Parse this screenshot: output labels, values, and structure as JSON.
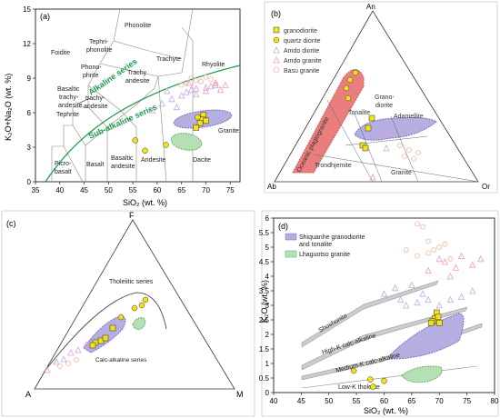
{
  "legend_colors": {
    "granodiorite": "#f5e11a",
    "quartz_diorite": "#f5e11a",
    "amdo_diorite": "#c9a6e6",
    "amdo_granite": "#e69ad0",
    "basu_granite": "#f3b79e",
    "purple_field": "#b5aee0",
    "green_field": "#b5dfb5",
    "red_field": "#e86f6f",
    "alkaline_line": "#1a9a4a"
  },
  "chart_data": [
    {
      "panel": "(a)",
      "type": "scatter",
      "xlabel": "SiO₂ (wt. %)",
      "ylabel": "K₂O+Na₂O (wt. %)",
      "xlim": [
        35,
        77
      ],
      "ylim": [
        0,
        15
      ],
      "xticks": [
        "35",
        "40",
        "45",
        "50",
        "55",
        "60",
        "65",
        "70",
        "75"
      ],
      "yticks": [
        "0",
        "3",
        "6",
        "9",
        "12",
        "15"
      ],
      "field_labels": [
        "Foidite",
        "Tephri-\nphonolite",
        "Phonolite",
        "Phono-\nphrite",
        "Trachy\nandesite",
        "Trachyte",
        "Rhyolite",
        "Basaltic\ntrachy-\nandesite",
        "trachy-\nandesite",
        "Tephrite",
        "Basalt",
        "Basaltic\nandesite",
        "Andesite",
        "Dacite",
        "Granite",
        "Picro-\nbasalt"
      ],
      "series_labels": [
        "Alkaline series",
        "Sub-alkaline series"
      ],
      "series": [
        {
          "name": "granodiorite",
          "marker": "square",
          "points": [
            [
              69.5,
              5.8
            ],
            [
              69.2,
              5.4
            ],
            [
              70.0,
              5.3
            ],
            [
              68.8,
              5.1
            ],
            [
              68.0,
              4.7
            ]
          ]
        },
        {
          "name": "quartz diorite",
          "marker": "circle",
          "points": [
            [
              55.5,
              3.6
            ],
            [
              57.5,
              2.7
            ],
            [
              61.8,
              3.2
            ],
            [
              68.3,
              5.6
            ]
          ]
        },
        {
          "name": "Amdo diorite",
          "marker": "triangle",
          "points": [
            [
              59,
              6.2
            ],
            [
              61,
              6.8
            ],
            [
              63,
              7.2
            ],
            [
              65,
              7.5
            ],
            [
              66,
              7.8
            ],
            [
              67,
              8.0
            ],
            [
              68,
              7.6
            ],
            [
              64,
              6.5
            ],
            [
              70,
              8.2
            ],
            [
              72,
              8.4
            ],
            [
              62,
              7.9
            ]
          ]
        },
        {
          "name": "Amdo granite",
          "marker": "triangle",
          "points": [
            [
              70,
              7.9
            ],
            [
              71,
              8.3
            ],
            [
              72,
              8.6
            ],
            [
              73,
              8.0
            ],
            [
              74,
              8.4
            ],
            [
              68,
              8.1
            ],
            [
              66.5,
              8.6
            ]
          ]
        },
        {
          "name": "Basu granite",
          "marker": "circle-open",
          "points": [
            [
              66,
              8.6
            ],
            [
              67,
              9.0
            ],
            [
              68,
              8.8
            ],
            [
              69,
              8.7
            ],
            [
              70,
              9.1
            ],
            [
              71,
              8.9
            ],
            [
              72,
              8.5
            ],
            [
              65,
              8.4
            ]
          ]
        }
      ]
    },
    {
      "panel": "(b)",
      "type": "ternary",
      "vertices": [
        "An",
        "Ab",
        "Or"
      ],
      "legend": [
        "granodiorite",
        "quartz diorite",
        "Amdo diorite",
        "Amdo granite",
        "Basu granite"
      ],
      "field_labels": [
        "Oceanic plagiogranite",
        "Tonalite",
        "Grano-\ndiorite",
        "Adamellite",
        "Granite",
        "Trondhjemite"
      ]
    },
    {
      "panel": "(c)",
      "type": "ternary",
      "vertices": [
        "F",
        "A",
        "M"
      ],
      "field_labels": [
        "Tholeiitic series",
        "Calc-alkaline series"
      ]
    },
    {
      "panel": "(d)",
      "type": "scatter",
      "xlabel": "SiO₂ (wt. %)",
      "ylabel": "K₂O (wt. %)",
      "xlim": [
        40,
        80
      ],
      "ylim": [
        0,
        6
      ],
      "xticks": [
        "40",
        "45",
        "50",
        "55",
        "60",
        "65",
        "70",
        "75",
        "80"
      ],
      "yticks": [
        "0",
        "0.5",
        "1",
        "1.5",
        "2",
        "2.5",
        "3",
        "3.5",
        "4",
        "4.5",
        "5",
        "5.5",
        "6"
      ],
      "legend": [
        "Shiquanhe granodiorite\nand tonalite",
        "Lhaguotso granite"
      ],
      "field_labels": [
        "Shoshonite",
        "High-K calc-alkaline",
        "Medium-K calc-alkaline",
        "Low-K tholeiite"
      ],
      "series": [
        {
          "name": "granodiorite",
          "marker": "square",
          "points": [
            [
              69.5,
              2.75
            ],
            [
              69.2,
              2.55
            ],
            [
              70.0,
              2.4
            ],
            [
              68.8,
              2.45
            ],
            [
              69.8,
              2.6
            ],
            [
              68.5,
              2.4
            ]
          ]
        },
        {
          "name": "quartz diorite",
          "marker": "circle",
          "points": [
            [
              54.5,
              0.75
            ],
            [
              57.5,
              0.45
            ],
            [
              60,
              0.4
            ],
            [
              58,
              0.2
            ]
          ]
        },
        {
          "name": "Amdo diorite",
          "marker": "triangle",
          "points": [
            [
              60,
              3.4
            ],
            [
              62,
              3.6
            ],
            [
              63,
              3.2
            ],
            [
              64,
              3.0
            ],
            [
              66,
              3.1
            ],
            [
              67,
              3.4
            ],
            [
              65,
              3.7
            ],
            [
              68,
              3.2
            ],
            [
              72,
              3.2
            ],
            [
              74,
              3.3
            ],
            [
              76,
              3.5
            ],
            [
              70,
              3.0
            ]
          ]
        },
        {
          "name": "Amdo granite",
          "marker": "triangle",
          "points": [
            [
              70,
              4.6
            ],
            [
              71,
              4.5
            ],
            [
              72,
              4.0
            ],
            [
              73,
              4.3
            ],
            [
              74,
              4.7
            ],
            [
              76,
              4.4
            ],
            [
              77.5,
              4.6
            ],
            [
              68,
              4.2
            ]
          ]
        },
        {
          "name": "Basu granite",
          "marker": "circle-open",
          "points": [
            [
              66,
              5.8
            ],
            [
              67,
              5.7
            ],
            [
              68,
              5.2
            ],
            [
              69,
              4.9
            ],
            [
              70,
              5.0
            ],
            [
              71,
              5.1
            ],
            [
              72,
              4.6
            ],
            [
              64,
              4.9
            ],
            [
              66,
              4.7
            ],
            [
              68,
              4.8
            ]
          ]
        }
      ]
    }
  ]
}
